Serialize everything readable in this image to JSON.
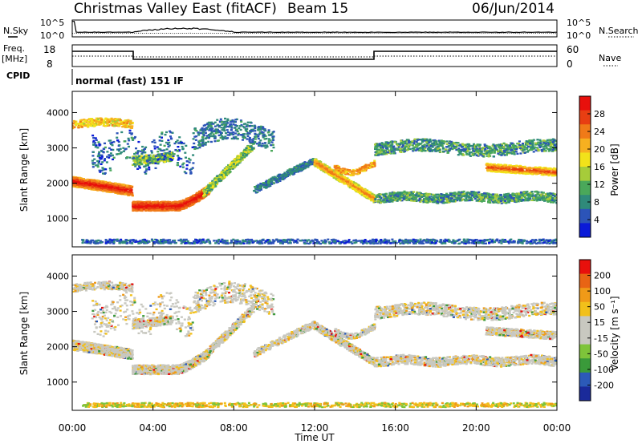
{
  "header": {
    "title": "Christmas Valley East (fitACF)",
    "beam": "Beam 15",
    "date": "06/Jun/2014"
  },
  "summary": {
    "nsky_label": "N.Sky",
    "nsearch_label": "N.Search",
    "nsky_ticks": [
      "10^5",
      "10^0"
    ],
    "nsearch_ticks": [
      "10^5",
      "10^0"
    ],
    "freq_label_line1": "Freq.",
    "freq_label_line2": "[MHz]",
    "freq_ticks": [
      "18",
      "8"
    ],
    "nave_label": "Nave",
    "nave_ticks": [
      "60",
      "0"
    ],
    "cpid_label": "CPID",
    "cpid_text": "normal (fast) 151 IF"
  },
  "chart_data": [
    {
      "type": "heatmap",
      "name": "power",
      "ylabel": "Slant Range [km]",
      "xlabel": "",
      "xlim_hours": [
        0,
        24
      ],
      "ylim": [
        200,
        4600
      ],
      "ytick_labels": [
        "4000",
        "3000",
        "2000",
        "1000"
      ],
      "ytick_values": [
        4000,
        3000,
        2000,
        1000
      ],
      "colorbar": {
        "label": "Power [dB]",
        "tick_labels": [
          "28",
          "24",
          "20",
          "16",
          "12",
          "8",
          "4"
        ],
        "colors": [
          "#0a1ad8",
          "#2c54b8",
          "#2f8a7a",
          "#4aa85a",
          "#a6cc3a",
          "#f2e21a",
          "#f7b020",
          "#f07a18",
          "#e83e12",
          "#e8100c"
        ]
      }
    },
    {
      "type": "heatmap",
      "name": "velocity",
      "ylabel": "Slant Range [km]",
      "xlabel": "Time UT",
      "xlim_hours": [
        0,
        24
      ],
      "ylim": [
        200,
        4600
      ],
      "xtick_labels": [
        "00:00",
        "04:00",
        "08:00",
        "12:00",
        "16:00",
        "20:00",
        "00:00"
      ],
      "xtick_hours": [
        0,
        4,
        8,
        12,
        16,
        20,
        24
      ],
      "ytick_labels": [
        "4000",
        "3000",
        "2000",
        "1000"
      ],
      "ytick_values": [
        4000,
        3000,
        2000,
        1000
      ],
      "colorbar": {
        "label": "Velocity [m s⁻¹]",
        "tick_labels": [
          "200",
          "100",
          "50",
          "15",
          "-15",
          "-50",
          "-100",
          "-200"
        ],
        "colors": [
          "#1a2a9a",
          "#2c5ab8",
          "#3a9a3a",
          "#7ec43a",
          "#c8c8c0",
          "#c8c8c0",
          "#f2c01a",
          "#f09a18",
          "#e86414",
          "#e8100c"
        ]
      }
    }
  ]
}
